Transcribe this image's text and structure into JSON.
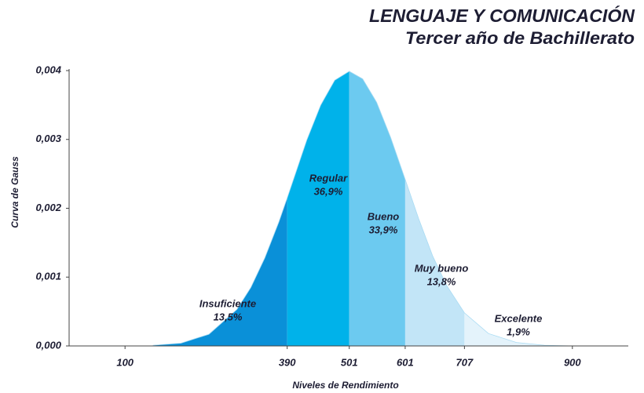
{
  "chart_data": {
    "type": "gauss-area",
    "title": "LENGUAJE Y COMUNICACIÓN",
    "subtitle": "Tercer año de Bachillerato",
    "x_label": "Niveles de Rendimiento",
    "y_label": "Curva de Gauss",
    "x": [
      150,
      200,
      250,
      300,
      325,
      350,
      375,
      390,
      425,
      450,
      475,
      501,
      525,
      550,
      575,
      601,
      625,
      650,
      675,
      707,
      750,
      800,
      850,
      900
    ],
    "values": [
      1e-05,
      4e-05,
      0.00017,
      0.00053,
      0.00085,
      0.00128,
      0.0018,
      0.00215,
      0.00299,
      0.0035,
      0.00386,
      0.00399,
      0.00388,
      0.00354,
      0.00303,
      0.00242,
      0.00185,
      0.00131,
      0.00088,
      0.00048,
      0.00018,
      5e-05,
      1e-05,
      0
    ],
    "boundaries": [
      390,
      501,
      601,
      707
    ],
    "regions": [
      {
        "name": "Insuficiente",
        "value": 13.5,
        "value_label": "13,5%",
        "color": "#0a90d8"
      },
      {
        "name": "Regular",
        "value": 36.9,
        "value_label": "36,9%",
        "color": "#00b2ea"
      },
      {
        "name": "Bueno",
        "value": 33.9,
        "value_label": "33,9%",
        "color": "#6ccaf0"
      },
      {
        "name": "Muy bueno",
        "value": 13.8,
        "value_label": "13,8%",
        "color": "#c2e5f7"
      },
      {
        "name": "Excelente",
        "value": 1.9,
        "value_label": "1,9%",
        "color": "#e4f3fb"
      }
    ],
    "xlim": [
      0,
      1000
    ],
    "xticks": [
      100,
      390,
      501,
      601,
      707,
      900
    ],
    "ylim": [
      0,
      0.004
    ],
    "yticks": [
      {
        "value": 0,
        "label": "0,000"
      },
      {
        "value": 0.001,
        "label": "0,001"
      },
      {
        "value": 0.002,
        "label": "0,002"
      },
      {
        "value": 0.003,
        "label": "0,003"
      },
      {
        "value": 0.004,
        "label": "0,004"
      }
    ]
  }
}
